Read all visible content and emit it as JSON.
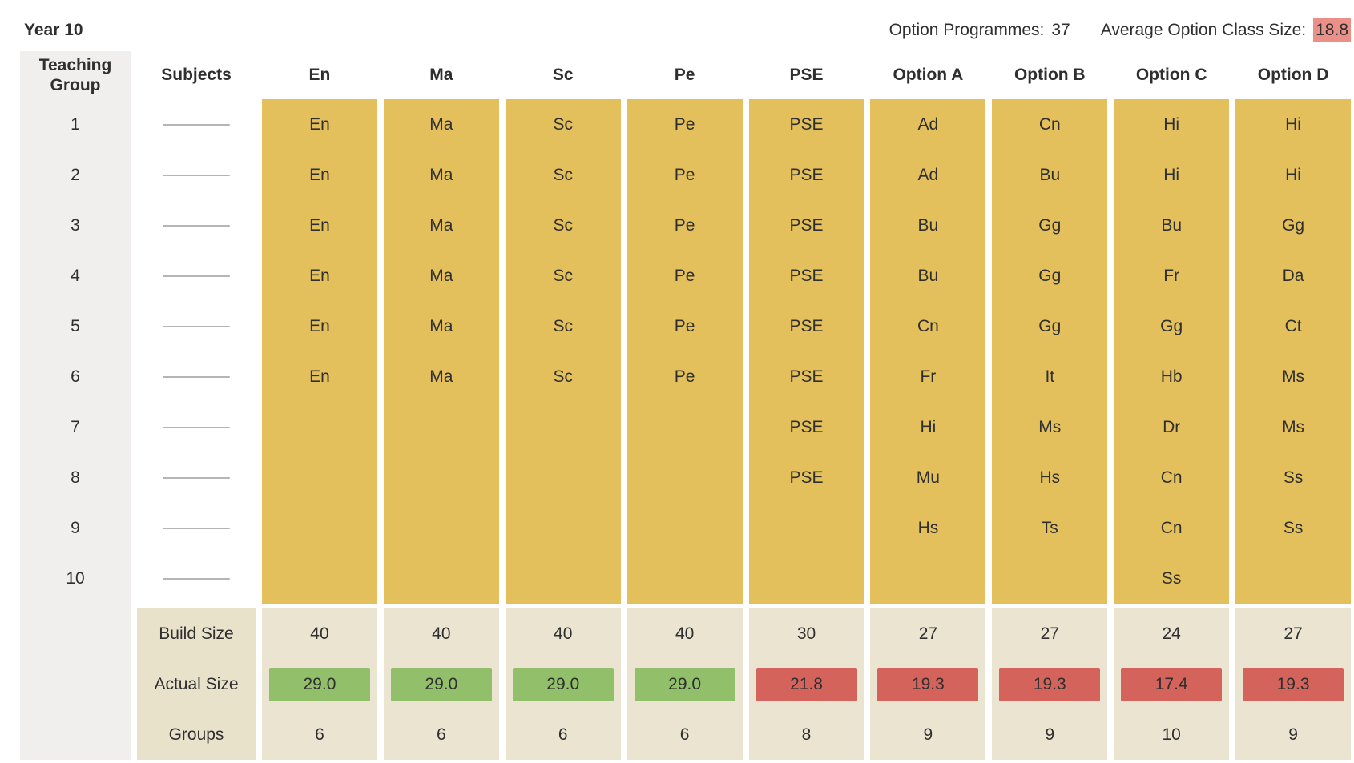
{
  "page": {
    "title": "Year 10",
    "stats": {
      "option_programmes_label": "Option Programmes:",
      "option_programmes_value": "37",
      "avg_option_class_size_label": "Average Option Class Size:",
      "avg_option_class_size_value": "18.8"
    }
  },
  "table": {
    "group_header": "Teaching Group",
    "subjects_header": "Subjects",
    "group_numbers": [
      "1",
      "2",
      "3",
      "4",
      "5",
      "6",
      "7",
      "8",
      "9",
      "10"
    ],
    "summary_labels": {
      "build_size": "Build Size",
      "actual_size": "Actual Size",
      "groups": "Groups"
    },
    "subject_columns": [
      {
        "label": "En",
        "cells": [
          "En",
          "En",
          "En",
          "En",
          "En",
          "En",
          "",
          "",
          "",
          ""
        ],
        "build_size": "40",
        "actual_size": "29.0",
        "actual_status": "good",
        "groups": "6"
      },
      {
        "label": "Ma",
        "cells": [
          "Ma",
          "Ma",
          "Ma",
          "Ma",
          "Ma",
          "Ma",
          "",
          "",
          "",
          ""
        ],
        "build_size": "40",
        "actual_size": "29.0",
        "actual_status": "good",
        "groups": "6"
      },
      {
        "label": "Sc",
        "cells": [
          "Sc",
          "Sc",
          "Sc",
          "Sc",
          "Sc",
          "Sc",
          "",
          "",
          "",
          ""
        ],
        "build_size": "40",
        "actual_size": "29.0",
        "actual_status": "good",
        "groups": "6"
      },
      {
        "label": "Pe",
        "cells": [
          "Pe",
          "Pe",
          "Pe",
          "Pe",
          "Pe",
          "Pe",
          "",
          "",
          "",
          ""
        ],
        "build_size": "40",
        "actual_size": "29.0",
        "actual_status": "good",
        "groups": "6"
      },
      {
        "label": "PSE",
        "cells": [
          "PSE",
          "PSE",
          "PSE",
          "PSE",
          "PSE",
          "PSE",
          "PSE",
          "PSE",
          "",
          ""
        ],
        "build_size": "30",
        "actual_size": "21.8",
        "actual_status": "alert",
        "groups": "8"
      },
      {
        "label": "Option A",
        "cells": [
          "Ad",
          "Ad",
          "Bu",
          "Bu",
          "Cn",
          "Fr",
          "Hi",
          "Mu",
          "Hs",
          ""
        ],
        "build_size": "27",
        "actual_size": "19.3",
        "actual_status": "alert",
        "groups": "9"
      },
      {
        "label": "Option B",
        "cells": [
          "Cn",
          "Bu",
          "Gg",
          "Gg",
          "Gg",
          "It",
          "Ms",
          "Hs",
          "Ts",
          ""
        ],
        "build_size": "27",
        "actual_size": "19.3",
        "actual_status": "alert",
        "groups": "9"
      },
      {
        "label": "Option C",
        "cells": [
          "Hi",
          "Hi",
          "Bu",
          "Fr",
          "Gg",
          "Hb",
          "Dr",
          "Cn",
          "Cn",
          "Ss"
        ],
        "build_size": "24",
        "actual_size": "17.4",
        "actual_status": "alert",
        "groups": "10"
      },
      {
        "label": "Option D",
        "cells": [
          "Hi",
          "Hi",
          "Gg",
          "Da",
          "Ct",
          "Ms",
          "Ms",
          "Ss",
          "Ss",
          ""
        ],
        "build_size": "27",
        "actual_size": "19.3",
        "actual_status": "alert",
        "groups": "9"
      }
    ]
  },
  "colors": {
    "column_yellow": "#e3c05c",
    "group_gray": "#f0efed",
    "label_beige": "#e9e2cb",
    "value_beige": "#eae4d0",
    "good_green": "#92bf6a",
    "alert_red": "#d4635c",
    "stat_red": "#ea9088",
    "dash_gray": "#b5b5b5",
    "text": "#2f2f2f"
  }
}
